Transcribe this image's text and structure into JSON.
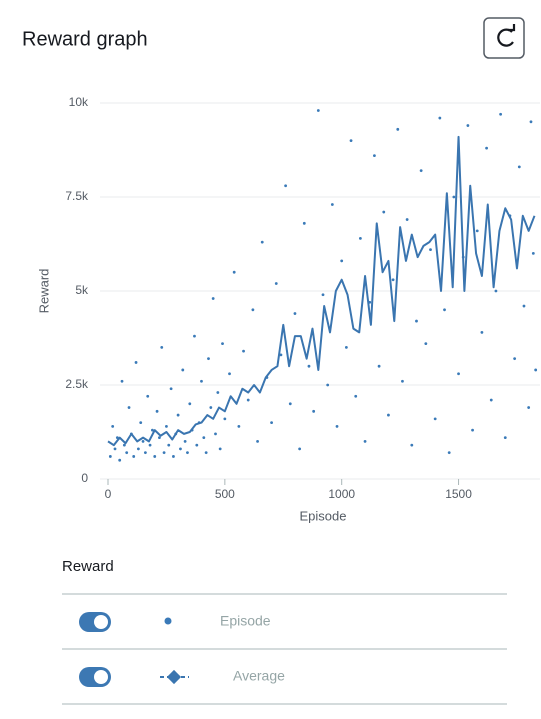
{
  "header": {
    "title": "Reward graph"
  },
  "chart_data": {
    "type": "scatter",
    "xlabel": "Episode",
    "ylabel": "Reward",
    "xlim": [
      0,
      1840
    ],
    "ylim": [
      0,
      10000
    ],
    "xticks": [
      0,
      500,
      1000,
      1500
    ],
    "yticks": [
      0,
      {
        "value": 2500,
        "label": "2.5k"
      },
      {
        "value": 5000,
        "label": "5k"
      },
      {
        "value": 7500,
        "label": "7.5k"
      },
      {
        "value": 10000,
        "label": "10k"
      }
    ],
    "grid": true,
    "series": [
      {
        "name": "Episode",
        "type": "scatter",
        "color": "#3a7ab8",
        "x": [
          10,
          20,
          30,
          40,
          50,
          60,
          70,
          80,
          90,
          100,
          110,
          120,
          130,
          140,
          150,
          160,
          170,
          180,
          190,
          200,
          210,
          220,
          230,
          240,
          250,
          260,
          270,
          280,
          290,
          300,
          310,
          320,
          330,
          340,
          350,
          360,
          370,
          380,
          390,
          400,
          410,
          420,
          430,
          440,
          450,
          460,
          470,
          480,
          490,
          500,
          520,
          540,
          560,
          580,
          600,
          620,
          640,
          660,
          680,
          700,
          720,
          740,
          760,
          780,
          800,
          820,
          840,
          860,
          880,
          900,
          920,
          940,
          960,
          980,
          1000,
          1020,
          1040,
          1060,
          1080,
          1100,
          1120,
          1140,
          1160,
          1180,
          1200,
          1220,
          1240,
          1260,
          1280,
          1300,
          1320,
          1340,
          1360,
          1380,
          1400,
          1420,
          1440,
          1460,
          1480,
          1500,
          1520,
          1540,
          1560,
          1580,
          1600,
          1620,
          1640,
          1660,
          1680,
          1700,
          1720,
          1740,
          1760,
          1780,
          1800,
          1810,
          1820,
          1830
        ],
        "values": [
          600,
          1400,
          800,
          1100,
          500,
          2600,
          900,
          700,
          1900,
          1200,
          600,
          3100,
          800,
          1500,
          1000,
          700,
          2200,
          900,
          1300,
          600,
          1800,
          1100,
          3500,
          700,
          1400,
          900,
          2400,
          600,
          1200,
          1700,
          800,
          2900,
          1000,
          700,
          2000,
          1300,
          3800,
          900,
          1500,
          2600,
          1100,
          700,
          3200,
          1900,
          4800,
          1200,
          2300,
          800,
          3600,
          1600,
          2800,
          5500,
          1400,
          3400,
          2100,
          4500,
          1000,
          6300,
          2700,
          1500,
          5200,
          3300,
          7800,
          2000,
          4400,
          800,
          6800,
          3000,
          1800,
          9800,
          4900,
          2500,
          7300,
          1400,
          5800,
          3500,
          9000,
          2200,
          6400,
          1000,
          4700,
          8600,
          3000,
          7100,
          1700,
          5300,
          9300,
          2600,
          6900,
          900,
          4200,
          8200,
          3600,
          6100,
          1600,
          9600,
          4500,
          700,
          7500,
          2800,
          5900,
          9400,
          1300,
          6600,
          3900,
          8800,
          2100,
          5000,
          9700,
          1100,
          7000,
          3200,
          8300,
          4600,
          1900,
          9500,
          6000,
          2900
        ]
      },
      {
        "name": "Average",
        "type": "line",
        "color": "#3a75b0",
        "x": [
          0,
          25,
          50,
          75,
          100,
          125,
          150,
          175,
          200,
          225,
          250,
          275,
          300,
          325,
          350,
          375,
          400,
          425,
          450,
          475,
          500,
          525,
          550,
          575,
          600,
          625,
          650,
          675,
          700,
          725,
          750,
          775,
          800,
          825,
          850,
          875,
          900,
          925,
          950,
          975,
          1000,
          1025,
          1050,
          1075,
          1100,
          1125,
          1150,
          1175,
          1200,
          1225,
          1250,
          1275,
          1300,
          1325,
          1350,
          1375,
          1400,
          1425,
          1450,
          1475,
          1500,
          1525,
          1550,
          1575,
          1600,
          1625,
          1650,
          1675,
          1700,
          1725,
          1750,
          1775,
          1800,
          1825
        ],
        "values": [
          1000,
          900,
          1100,
          950,
          1200,
          1000,
          1100,
          1000,
          1300,
          1150,
          1250,
          1050,
          1300,
          1200,
          1250,
          1450,
          1500,
          1700,
          1600,
          1900,
          1800,
          2200,
          2000,
          2400,
          2300,
          2500,
          2300,
          2700,
          2900,
          3000,
          4100,
          3000,
          3800,
          3800,
          3200,
          4000,
          2900,
          4600,
          3900,
          5000,
          5300,
          4900,
          4000,
          3900,
          5400,
          4100,
          6800,
          5500,
          5800,
          4200,
          6700,
          5800,
          6500,
          5900,
          6200,
          6300,
          6500,
          5000,
          7600,
          5100,
          9100,
          5000,
          7800,
          6000,
          5400,
          7300,
          5100,
          6600,
          7200,
          6900,
          5600,
          7000,
          6600,
          7000
        ]
      }
    ]
  },
  "legend": {
    "title": "Reward"
  }
}
